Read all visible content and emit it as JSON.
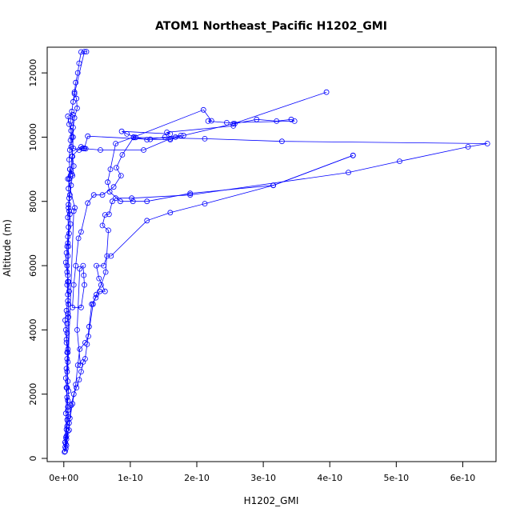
{
  "chart_data": {
    "type": "line",
    "title": "ATOM1 Northeast_Pacific H1202_GMI",
    "xlabel": "H1202_GMI",
    "ylabel": "Altitude (m)",
    "xlim": [
      -2.5e-11,
      6.5e-10
    ],
    "ylim": [
      -100,
      12800
    ],
    "x_ticks": [
      {
        "value": 0,
        "label": "0e+00"
      },
      {
        "value": 1e-10,
        "label": "1e-10"
      },
      {
        "value": 2e-10,
        "label": "2e-10"
      },
      {
        "value": 3e-10,
        "label": "3e-10"
      },
      {
        "value": 4e-10,
        "label": "4e-10"
      },
      {
        "value": 5e-10,
        "label": "5e-10"
      },
      {
        "value": 6e-10,
        "label": "6e-10"
      }
    ],
    "y_ticks": [
      {
        "value": 0,
        "label": "0"
      },
      {
        "value": 2000,
        "label": "2000"
      },
      {
        "value": 4000,
        "label": "4000"
      },
      {
        "value": 6000,
        "label": "6000"
      },
      {
        "value": 8000,
        "label": "8000"
      },
      {
        "value": 10000,
        "label": "10000"
      },
      {
        "value": 12000,
        "label": "12000"
      }
    ],
    "color": "#0000ff",
    "marker": "open-circle",
    "grid": false,
    "series": [
      {
        "points": [
          [
            1e-12,
            200
          ],
          [
            2e-12,
            350
          ],
          [
            2e-12,
            500
          ],
          [
            3e-12,
            650
          ],
          [
            4e-12,
            900
          ],
          [
            5e-12,
            1200
          ],
          [
            6e-12,
            1500
          ],
          [
            6e-12,
            1800
          ],
          [
            7e-12,
            2100
          ],
          [
            6e-12,
            2400
          ],
          [
            5e-12,
            2700
          ],
          [
            6e-12,
            3000
          ],
          [
            5e-12,
            3300
          ],
          [
            4e-12,
            3600
          ],
          [
            5e-12,
            3900
          ],
          [
            5e-12,
            4200
          ],
          [
            6e-12,
            4500
          ],
          [
            7e-12,
            4800
          ],
          [
            6e-12,
            5100
          ],
          [
            5e-12,
            5400
          ],
          [
            6e-12,
            5700
          ],
          [
            5e-12,
            6000
          ],
          [
            6e-12,
            6300
          ],
          [
            5e-12,
            6600
          ],
          [
            6e-12,
            6900
          ],
          [
            7e-12,
            7200
          ],
          [
            6e-12,
            7500
          ],
          [
            7e-12,
            7800
          ],
          [
            8e-12,
            8100
          ],
          [
            7e-12,
            8400
          ],
          [
            8e-12,
            8700
          ],
          [
            9e-12,
            9000
          ],
          [
            8e-12,
            9300
          ],
          [
            9e-12,
            9600
          ],
          [
            1e-11,
            9900
          ],
          [
            1.1e-11,
            10200
          ],
          [
            1e-11,
            10500
          ],
          [
            1.2e-11,
            10800
          ],
          [
            1.4e-11,
            11100
          ],
          [
            1.6e-11,
            11400
          ],
          [
            1.8e-11,
            11700
          ],
          [
            2.1e-11,
            12000
          ],
          [
            2.3e-11,
            12300
          ],
          [
            2.6e-11,
            12650
          ],
          [
            3.4e-11,
            12660
          ]
        ]
      },
      {
        "points": [
          [
            2e-12,
            220
          ],
          [
            3e-12,
            450
          ],
          [
            4e-12,
            700
          ],
          [
            5e-12,
            1000
          ],
          [
            7e-12,
            1300
          ],
          [
            6e-12,
            1600
          ],
          [
            5e-12,
            1900
          ],
          [
            4e-12,
            2200
          ],
          [
            3e-12,
            2500
          ],
          [
            4e-12,
            2800
          ],
          [
            5e-12,
            3100
          ],
          [
            6e-12,
            3400
          ],
          [
            4e-12,
            3700
          ],
          [
            3e-12,
            4000
          ],
          [
            2e-12,
            4300
          ],
          [
            4e-12,
            4600
          ],
          [
            6e-12,
            4900
          ],
          [
            8e-12,
            5200
          ],
          [
            7e-12,
            5500
          ],
          [
            5e-12,
            5800
          ],
          [
            3e-12,
            6100
          ],
          [
            4e-12,
            6400
          ],
          [
            6e-12,
            6700
          ],
          [
            8e-12,
            7000
          ],
          [
            1e-11,
            7300
          ],
          [
            9e-12,
            7600
          ],
          [
            7e-12,
            7900
          ],
          [
            9e-12,
            8200
          ],
          [
            1.1e-11,
            8500
          ],
          [
            1.3e-11,
            8800
          ],
          [
            1.5e-11,
            9100
          ],
          [
            1.3e-11,
            9400
          ],
          [
            1.1e-11,
            9700
          ],
          [
            1.2e-11,
            10000
          ],
          [
            1.4e-11,
            10300
          ],
          [
            1.6e-11,
            10600
          ],
          [
            2e-11,
            10900
          ],
          [
            1.9e-11,
            11200
          ],
          [
            1.6e-11,
            11350
          ],
          [
            3.1e-11,
            12660
          ]
        ]
      },
      {
        "points": [
          [
            3e-12,
            300
          ],
          [
            4e-12,
            600
          ],
          [
            6e-12,
            850
          ],
          [
            8e-12,
            880
          ],
          [
            9e-12,
            1250
          ],
          [
            1.1e-11,
            1650
          ],
          [
            1.5e-11,
            2000
          ],
          [
            1.9e-11,
            2200
          ],
          [
            2.3e-11,
            2450
          ],
          [
            2.6e-11,
            2700
          ],
          [
            2.9e-11,
            3000
          ],
          [
            3.2e-11,
            3100
          ],
          [
            3.5e-11,
            3550
          ],
          [
            3.8e-11,
            4100
          ],
          [
            4.2e-11,
            4800
          ],
          [
            4.8e-11,
            5000
          ],
          [
            5.4e-11,
            5200
          ],
          [
            6.2e-11,
            5200
          ],
          [
            5.3e-11,
            5600
          ],
          [
            4.9e-11,
            6000
          ],
          [
            6e-11,
            6000
          ],
          [
            6.5e-11,
            6300
          ],
          [
            7.1e-11,
            6300
          ],
          [
            1.25e-10,
            7400
          ],
          [
            1.6e-10,
            7650
          ],
          [
            2.12e-10,
            7930
          ],
          [
            3.15e-10,
            8500
          ],
          [
            4.35e-10,
            9430
          ]
        ]
      },
      {
        "points": [
          [
            4e-12,
            400
          ],
          [
            8e-12,
            1100
          ],
          [
            1.3e-11,
            1700
          ],
          [
            1.8e-11,
            2300
          ],
          [
            2.1e-11,
            2900
          ],
          [
            2.4e-11,
            3400
          ],
          [
            3.2e-11,
            3600
          ],
          [
            3.7e-11,
            3800
          ],
          [
            4.4e-11,
            4800
          ],
          [
            4.9e-11,
            5100
          ],
          [
            5.6e-11,
            5400
          ],
          [
            6.3e-11,
            5800
          ],
          [
            6.7e-11,
            7100
          ],
          [
            5.8e-11,
            7250
          ],
          [
            6.2e-11,
            7580
          ],
          [
            6.8e-11,
            7600
          ],
          [
            7.3e-11,
            8000
          ],
          [
            7.8e-11,
            8100
          ],
          [
            1.02e-10,
            8100
          ],
          [
            1.9e-10,
            8200
          ],
          [
            4.28e-10,
            8900
          ],
          [
            5.05e-10,
            9250
          ],
          [
            6.08e-10,
            9700
          ],
          [
            6.37e-10,
            9800
          ],
          [
            3.28e-10,
            9870
          ],
          [
            2.12e-10,
            9950
          ],
          [
            1.05e-10,
            9990
          ],
          [
            8.8e-11,
            9450
          ],
          [
            7.9e-11,
            9050
          ],
          [
            8.6e-11,
            8800
          ],
          [
            7.5e-11,
            8450
          ],
          [
            5.8e-11,
            8200
          ],
          [
            4.5e-11,
            8200
          ],
          [
            3.6e-11,
            7950
          ],
          [
            2.6e-11,
            7050
          ],
          [
            2.2e-11,
            6850
          ],
          [
            1.8e-11,
            6000
          ],
          [
            1.5e-11,
            5400
          ],
          [
            1.3e-11,
            4700
          ],
          [
            2.6e-11,
            4700
          ],
          [
            3.1e-11,
            5400
          ],
          [
            3e-11,
            5700
          ],
          [
            2.9e-11,
            6000
          ],
          [
            2.4e-11,
            5900
          ],
          [
            2e-11,
            4000
          ],
          [
            2.5e-11,
            2900
          ]
        ]
      },
      {
        "points": [
          [
            3e-12,
            1400
          ],
          [
            5e-12,
            2200
          ],
          [
            6e-12,
            3300
          ],
          [
            7e-12,
            4400
          ],
          [
            6e-12,
            5500
          ],
          [
            7e-12,
            6600
          ],
          [
            8e-12,
            7700
          ],
          [
            1e-11,
            8800
          ],
          [
            1.2e-11,
            9400
          ],
          [
            2.6e-11,
            9700
          ],
          [
            3e-11,
            9650
          ],
          [
            3.3e-11,
            9640
          ],
          [
            5.5e-11,
            9600
          ],
          [
            1.2e-10,
            9600
          ],
          [
            1.6e-10,
            9950
          ],
          [
            1.68e-10,
            10000
          ],
          [
            1.76e-10,
            10050
          ],
          [
            1.52e-10,
            10000
          ],
          [
            1.25e-10,
            9920
          ],
          [
            1.08e-10,
            9990
          ],
          [
            9.5e-11,
            10100
          ],
          [
            8.7e-11,
            10180
          ],
          [
            1.6e-10,
            10100
          ],
          [
            1.55e-10,
            10150
          ],
          [
            2.55e-10,
            10350
          ],
          [
            2.57e-10,
            10420
          ],
          [
            2.9e-10,
            10550
          ],
          [
            3.2e-10,
            10500
          ],
          [
            3.42e-10,
            10550
          ],
          [
            3.47e-10,
            10500
          ],
          [
            2.45e-10,
            10450
          ],
          [
            2.17e-10,
            10500
          ],
          [
            2.22e-10,
            10510
          ],
          [
            2.1e-10,
            10850
          ],
          [
            1.05e-10,
            10000
          ],
          [
            7.8e-11,
            9800
          ],
          [
            7e-11,
            9000
          ],
          [
            6.6e-11,
            8600
          ],
          [
            6.9e-11,
            8300
          ],
          [
            8.5e-11,
            8000
          ],
          [
            1.04e-10,
            8000
          ],
          [
            1.25e-10,
            8000
          ],
          [
            1.9e-10,
            8250
          ],
          [
            3.15e-10,
            8500
          ],
          [
            4.35e-10,
            9430
          ]
        ]
      },
      {
        "points": [
          [
            2e-12,
            500
          ],
          [
            1.5e-11,
            7700
          ],
          [
            1.65e-11,
            7800
          ],
          [
            6e-12,
            8700
          ],
          [
            9e-12,
            9000
          ],
          [
            1.2e-11,
            8850
          ],
          [
            1.4e-11,
            10000
          ],
          [
            1.35e-11,
            10700
          ],
          [
            6e-12,
            10650
          ],
          [
            8e-12,
            10400
          ],
          [
            1.1e-11,
            10200
          ],
          [
            1.45e-11,
            9650
          ],
          [
            2.3e-11,
            9600
          ],
          [
            2.8e-11,
            9650
          ],
          [
            3.1e-11,
            9650
          ],
          [
            3.6e-11,
            10030
          ],
          [
            1.3e-10,
            9930
          ],
          [
            1.6e-10,
            9920
          ],
          [
            1.8e-10,
            10050
          ],
          [
            2.55e-10,
            10420
          ],
          [
            3.95e-10,
            11400
          ]
        ]
      }
    ]
  }
}
